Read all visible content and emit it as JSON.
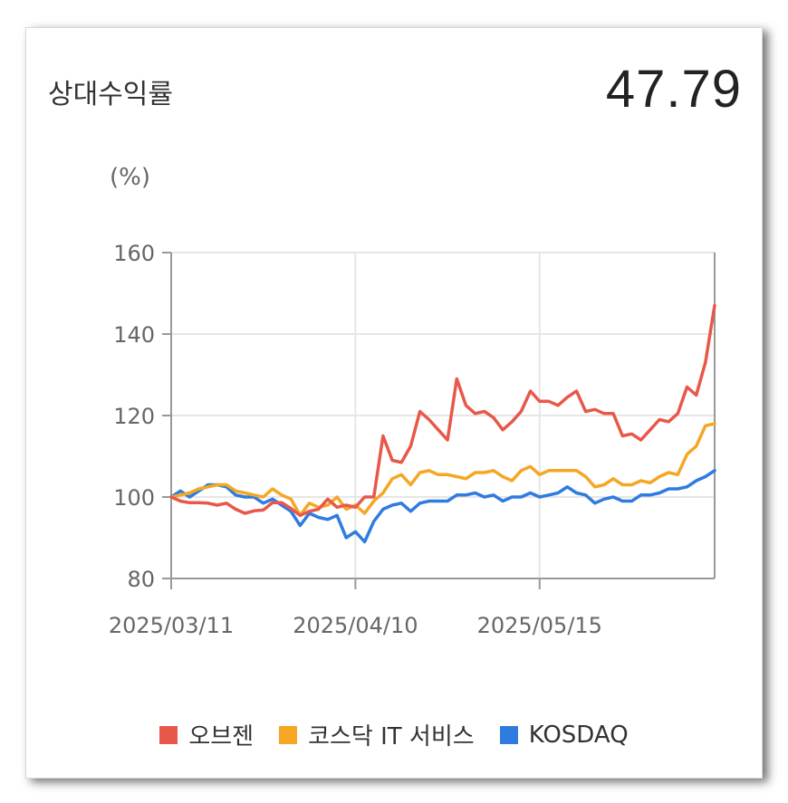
{
  "header": {
    "title": "상대수익률",
    "value": "47.79"
  },
  "chart_data": {
    "type": "line",
    "ylabel": "(%)",
    "ylim": [
      80,
      160
    ],
    "yticks": [
      80,
      100,
      120,
      140,
      160
    ],
    "x_start": "2025/03/11",
    "x_end": "2025/06/09",
    "xticks": [
      {
        "label": "2025/03/11",
        "index": 0
      },
      {
        "label": "2025/04/10",
        "index": 20
      },
      {
        "label": "2025/05/15",
        "index": 40
      }
    ],
    "grid": true,
    "legend_position": "bottom",
    "series": [
      {
        "name": "오브젠",
        "color": "#e8584a",
        "values": [
          100,
          99,
          98.6,
          98.6,
          98.5,
          98,
          98.5,
          97,
          96,
          96.6,
          96.8,
          98.6,
          98.6,
          97.2,
          95.5,
          96.5,
          97,
          99.5,
          97.5,
          98,
          97.5,
          100,
          100,
          115,
          109,
          108.5,
          112.5,
          121,
          119,
          116.5,
          114,
          129,
          122.5,
          120.5,
          121,
          119.5,
          116.5,
          118.5,
          121,
          126,
          123.5,
          123.5,
          122.5,
          124.5,
          126,
          121,
          121.5,
          120.5,
          120.5,
          115,
          115.5,
          114,
          116.5,
          119,
          118.5,
          120.5,
          127,
          125,
          133,
          147
        ]
      },
      {
        "name": "코스닥 IT 서비스",
        "color": "#f5a623",
        "values": [
          100,
          100.5,
          101,
          102,
          102.5,
          103,
          103,
          101.5,
          101,
          100.5,
          100,
          102,
          100.5,
          99.5,
          95.5,
          98.5,
          97.5,
          98,
          100,
          97,
          98,
          96,
          99,
          101,
          104.5,
          105.5,
          103,
          106,
          106.5,
          105.5,
          105.5,
          105,
          104.5,
          106,
          106,
          106.5,
          105,
          104,
          106.5,
          107.5,
          105.5,
          106.5,
          106.5,
          106.5,
          106.5,
          105,
          102.5,
          103,
          104.5,
          103,
          103,
          104,
          103.5,
          105,
          106,
          105.5,
          110.5,
          112.5,
          117.5,
          118
        ]
      },
      {
        "name": "KOSDAQ",
        "color": "#2f7be0",
        "values": [
          100,
          101.5,
          100,
          101.5,
          103,
          103,
          102.5,
          100.5,
          100,
          100,
          98.5,
          99.5,
          98,
          96.5,
          93,
          96,
          95,
          94.5,
          95.5,
          90,
          91.5,
          89,
          94,
          97,
          98,
          98.5,
          96.5,
          98.5,
          99,
          99,
          99,
          100.5,
          100.5,
          101,
          100,
          100.5,
          99,
          100,
          100,
          101,
          100,
          100.5,
          101,
          102.5,
          101,
          100.5,
          98.5,
          99.5,
          100,
          99,
          99,
          100.5,
          100.5,
          101,
          102,
          102,
          102.5,
          104,
          105,
          106.5
        ]
      }
    ]
  }
}
